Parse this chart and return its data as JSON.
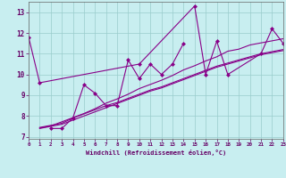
{
  "xlabel": "Windchill (Refroidissement éolien,°C)",
  "background_color": "#c8eef0",
  "line_color": "#880088",
  "grid_color": "#99cccc",
  "series": [
    {
      "x": [
        0,
        1,
        10,
        15,
        16,
        17,
        18,
        21,
        22,
        23
      ],
      "y": [
        11.8,
        9.6,
        10.5,
        13.3,
        10.0,
        11.6,
        10.0,
        11.0,
        12.2,
        11.5
      ]
    },
    {
      "x": [
        2,
        3,
        4,
        5,
        6,
        7,
        8,
        9,
        10,
        11,
        12,
        13,
        14
      ],
      "y": [
        7.4,
        7.4,
        7.9,
        9.5,
        9.1,
        8.5,
        8.5,
        10.7,
        9.8,
        10.5,
        10.0,
        10.5,
        11.5
      ]
    },
    {
      "x": [
        1,
        2,
        3,
        4,
        5,
        6,
        7,
        8,
        9,
        10,
        11,
        12,
        13,
        14,
        15,
        16,
        17,
        18,
        19,
        20,
        21,
        22,
        23
      ],
      "y": [
        7.45,
        7.55,
        7.65,
        7.9,
        8.1,
        8.3,
        8.5,
        8.65,
        8.85,
        9.05,
        9.25,
        9.4,
        9.6,
        9.8,
        10.0,
        10.2,
        10.4,
        10.55,
        10.7,
        10.85,
        11.0,
        11.1,
        11.2
      ]
    },
    {
      "x": [
        1,
        2,
        3,
        4,
        5,
        6,
        7,
        8,
        9,
        10,
        11,
        12,
        13,
        14,
        15,
        16,
        17,
        18,
        19,
        20,
        21,
        22,
        23
      ],
      "y": [
        7.4,
        7.5,
        7.6,
        7.8,
        8.0,
        8.2,
        8.4,
        8.6,
        8.8,
        9.0,
        9.2,
        9.35,
        9.55,
        9.75,
        9.95,
        10.15,
        10.35,
        10.5,
        10.65,
        10.8,
        10.95,
        11.05,
        11.15
      ]
    },
    {
      "x": [
        1,
        2,
        3,
        4,
        5,
        6,
        7,
        8,
        9,
        10,
        11,
        12,
        13,
        14,
        15,
        16,
        17,
        18,
        19,
        20,
        21,
        22,
        23
      ],
      "y": [
        7.42,
        7.52,
        7.72,
        7.92,
        8.12,
        8.35,
        8.62,
        8.82,
        9.05,
        9.32,
        9.52,
        9.72,
        9.95,
        10.22,
        10.42,
        10.65,
        10.85,
        11.12,
        11.22,
        11.42,
        11.52,
        11.62,
        11.72
      ]
    }
  ],
  "xlim": [
    0,
    23
  ],
  "ylim": [
    6.9,
    13.5
  ],
  "yticks": [
    7,
    8,
    9,
    10,
    11,
    12,
    13
  ],
  "xticks": [
    0,
    1,
    2,
    3,
    4,
    5,
    6,
    7,
    8,
    9,
    10,
    11,
    12,
    13,
    14,
    15,
    16,
    17,
    18,
    19,
    20,
    21,
    22,
    23
  ]
}
